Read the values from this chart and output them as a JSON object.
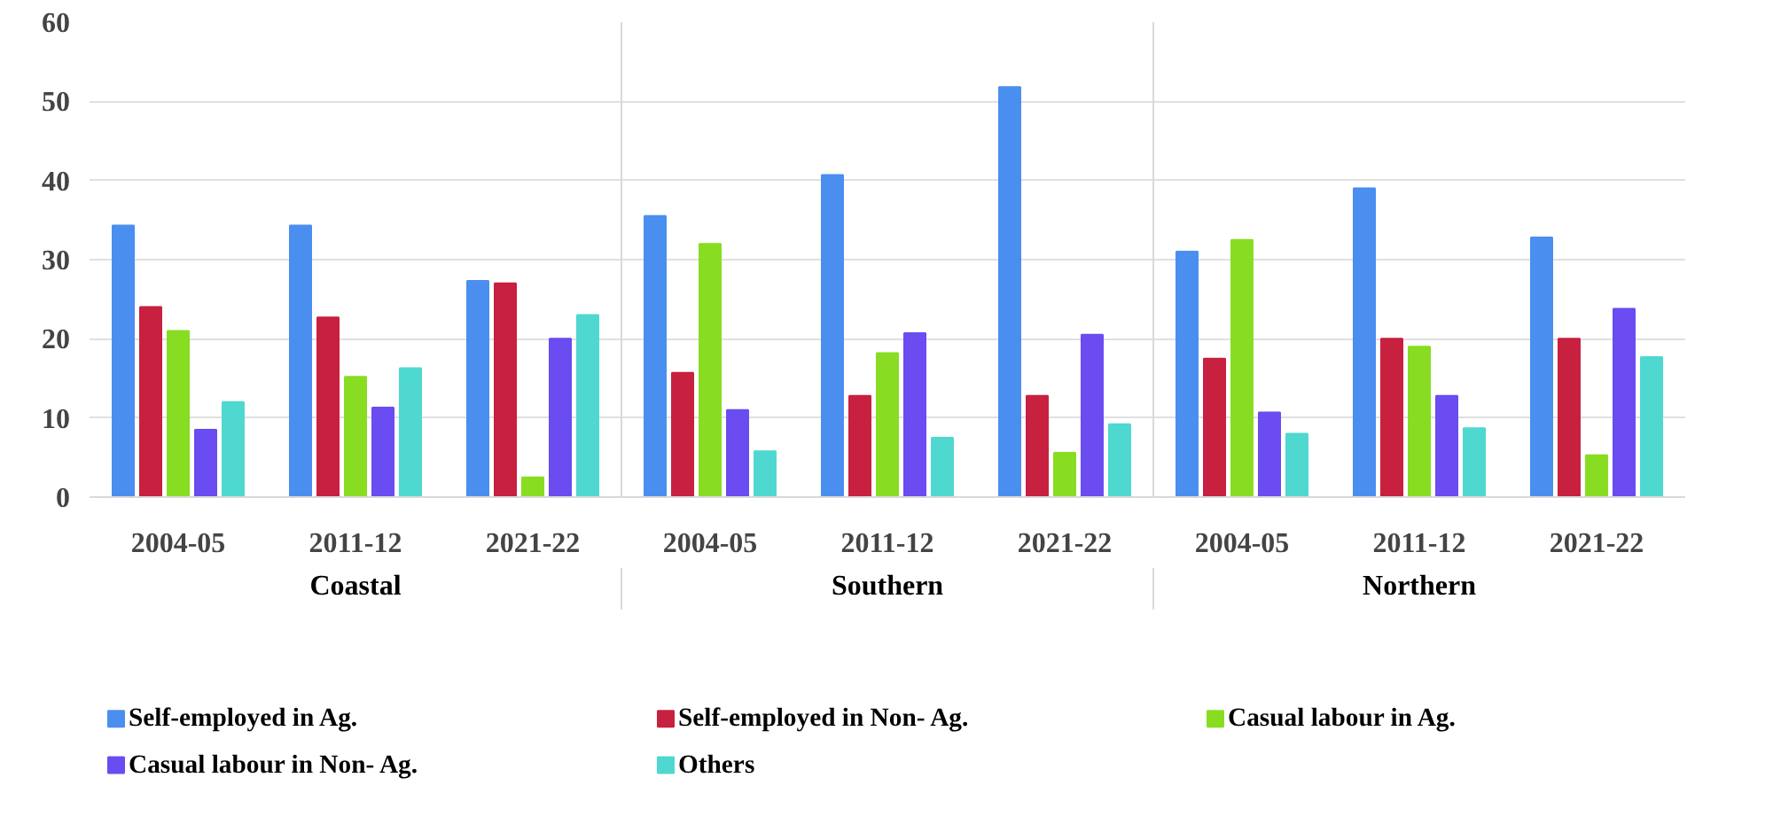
{
  "chart_data": {
    "type": "bar",
    "categories": [
      "2004-05",
      "2011-12",
      "2021-22",
      "2004-05",
      "2011-12",
      "2021-22",
      "2004-05",
      "2011-12",
      "2021-22"
    ],
    "annotations": [
      "Coastal",
      "Southern",
      "Northern"
    ],
    "series": [
      {
        "name": "Self-employed in Ag.",
        "color": "#4a8ff0",
        "values": [
          34.3,
          34.3,
          27.3,
          35.5,
          40.7,
          51.8,
          31,
          39,
          32.8
        ]
      },
      {
        "name": "Self-employed in Non- Ag.",
        "color": "#c8203f",
        "values": [
          24,
          22.7,
          27,
          15.7,
          12.8,
          12.8,
          17.5,
          20,
          20
        ]
      },
      {
        "name": "Casual labour in Ag.",
        "color": "#88dd22",
        "values": [
          21,
          15.2,
          2.5,
          32,
          18.2,
          5.6,
          32.5,
          19,
          5.3
        ]
      },
      {
        "name": "Casual labour in Non- Ag.",
        "color": "#6a4cf0",
        "values": [
          8.5,
          11.3,
          20,
          11,
          20.7,
          20.5,
          10.7,
          12.8,
          23.8
        ]
      },
      {
        "name": "Others",
        "color": "#4fd8d0",
        "values": [
          12,
          16.3,
          23,
          5.8,
          7.5,
          9.2,
          8,
          8.7,
          17.7
        ]
      }
    ],
    "ylim": [
      0,
      60
    ],
    "yticks": [
      0,
      10,
      20,
      30,
      40,
      50,
      60
    ],
    "grid": "y",
    "legend": "bottom"
  }
}
